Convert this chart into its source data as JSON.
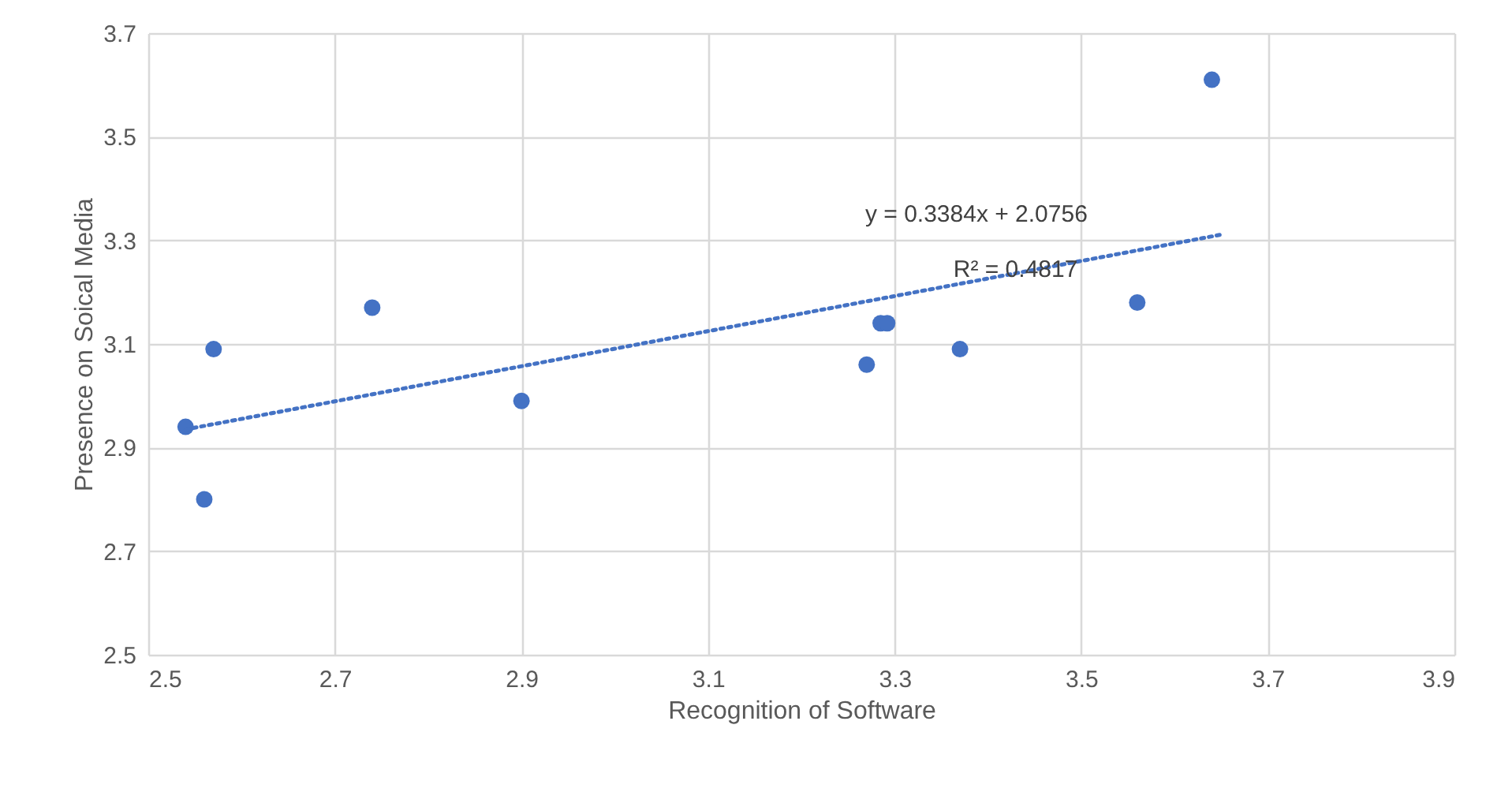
{
  "chart_data": {
    "type": "scatter",
    "xlabel": "Recognition of Software",
    "ylabel": "Presence on Soical Media",
    "xlim": [
      2.5,
      3.9
    ],
    "xticks": [
      2.5,
      2.7,
      2.9,
      3.1,
      3.3,
      3.5,
      3.7,
      3.9
    ],
    "ylim": [
      2.5,
      3.7
    ],
    "yticks": [
      2.5,
      2.7,
      2.9,
      3.1,
      3.3,
      3.5,
      3.7
    ],
    "grid": true,
    "marker": "circle",
    "series": [
      {
        "color": "#4472c4",
        "x": [
          2.54,
          2.57,
          2.56,
          2.74,
          2.9,
          3.27,
          3.285,
          3.292,
          3.37,
          3.56,
          3.64
        ],
        "values": [
          2.94,
          3.09,
          2.8,
          3.17,
          2.99,
          3.06,
          3.14,
          3.14,
          3.09,
          3.18,
          3.61
        ]
      },
      {
        "type": "line",
        "marker": "none",
        "line_style": "dotted",
        "color": "#4472c4",
        "x": [
          2.54,
          3.65
        ],
        "values": [
          2.935,
          3.311
        ]
      }
    ],
    "annotations": [
      "y = 0.3384x + 2.0756",
      "R² = 0.4817"
    ]
  }
}
